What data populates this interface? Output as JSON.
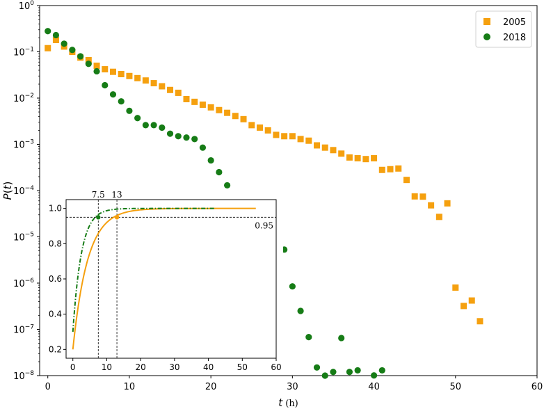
{
  "chart_data": [
    {
      "type": "scatter",
      "yscale": "log",
      "xlim": [
        -1,
        60
      ],
      "ylim": [
        1e-08,
        1
      ],
      "xticks": [
        0,
        10,
        20,
        30,
        40,
        50,
        60
      ],
      "xtick_labels": [
        "0",
        "10",
        "20",
        "30",
        "40",
        "50",
        "60"
      ],
      "ytick_exponents": [
        0,
        -1,
        -2,
        -3,
        -4,
        -5,
        -6,
        -7,
        -8
      ],
      "ytick_base": "10",
      "xlabel_italic": "t",
      "xlabel_unit": "(h)",
      "ylabel": "P(t)",
      "ylabel_parts": {
        "symbol": "P",
        "open": "(",
        "var": "t",
        "close": ")"
      },
      "legend_position": "top-right",
      "series": [
        {
          "name": "2005",
          "color": "#f5a00f",
          "marker": "square",
          "x": [
            0,
            1,
            2,
            3,
            4,
            5,
            6,
            7,
            8,
            9,
            10,
            11,
            12,
            13,
            14,
            15,
            16,
            17,
            18,
            19,
            20,
            21,
            22,
            23,
            24,
            25,
            26,
            27,
            28,
            29,
            30,
            31,
            32,
            33,
            34,
            35,
            36,
            37,
            38,
            39,
            40,
            41,
            42,
            43,
            44,
            45,
            46,
            47,
            48,
            49,
            50,
            51,
            52,
            53
          ],
          "y": [
            0.12,
            0.18,
            0.13,
            0.1,
            0.075,
            0.066,
            0.05,
            0.042,
            0.037,
            0.033,
            0.03,
            0.027,
            0.024,
            0.021,
            0.018,
            0.015,
            0.013,
            0.0095,
            0.0083,
            0.0072,
            0.0063,
            0.0055,
            0.0048,
            0.0041,
            0.0035,
            0.0026,
            0.0023,
            0.002,
            0.0016,
            0.0015,
            0.0015,
            0.0013,
            0.0012,
            0.00095,
            0.00085,
            0.00075,
            0.00063,
            0.00052,
            0.0005,
            0.00048,
            0.0005,
            0.00028,
            0.00029,
            0.0003,
            0.00017,
            7.5e-05,
            7.4e-05,
            4.8e-05,
            2.7e-05,
            5.3e-05,
            8e-07,
            3.2e-07,
            4.2e-07,
            1.5e-07
          ]
        },
        {
          "name": "2018",
          "color": "#167c16",
          "marker": "circle",
          "x": [
            0,
            1,
            2,
            3,
            4,
            5,
            6,
            7,
            8,
            9,
            10,
            11,
            12,
            13,
            14,
            15,
            16,
            17,
            18,
            19,
            20,
            21,
            22,
            23,
            24,
            25,
            26,
            27,
            28,
            29,
            30,
            31,
            32,
            33,
            34,
            35,
            36,
            37,
            38,
            39,
            40,
            41
          ],
          "y": [
            0.28,
            0.23,
            0.15,
            0.11,
            0.08,
            0.055,
            0.038,
            0.019,
            0.012,
            0.0085,
            0.0053,
            0.0037,
            0.0026,
            0.0026,
            0.0023,
            0.0017,
            0.0015,
            0.0014,
            0.0013,
            0.00085,
            0.00045,
            0.00025,
            0.00013,
            8.5e-05,
            4.5e-05,
            2.4e-05,
            1.7e-05,
            1.3e-05,
            6.6e-06,
            5.3e-06,
            8.5e-07,
            2.5e-07,
            6.8e-08,
            1.5e-08,
            1e-08,
            1.2e-08,
            6.5e-08,
            1.2e-08,
            1.3e-08,
            9.5e-09,
            1.01e-08,
            1.3e-08
          ]
        }
      ]
    },
    {
      "type": "line",
      "position": "inset",
      "xlim": [
        -2,
        60
      ],
      "ylim": [
        0.15,
        1.05
      ],
      "xticks": [
        0,
        10,
        20,
        30,
        40,
        50,
        60
      ],
      "xtick_labels": [
        "0",
        "10",
        "20",
        "30",
        "40",
        "50",
        "60"
      ],
      "yticks": [
        0.2,
        0.4,
        0.6,
        0.8,
        1.0
      ],
      "ytick_labels": [
        "0.2",
        "0.4",
        "0.6",
        "0.8",
        "1.0"
      ],
      "reference": {
        "y": 0.95,
        "y_label": "0.95",
        "x_markers": [
          7.5,
          13
        ],
        "x_marker_labels": [
          "7.5",
          "13"
        ]
      },
      "series": [
        {
          "color": "#f5a00f",
          "style": "solid",
          "x_end": 54,
          "tau": 4.34,
          "y0": 0.2
        },
        {
          "color": "#167c16",
          "style": "dashdot",
          "x_end": 42,
          "tau": 2.5,
          "y0": 0.3
        }
      ]
    }
  ]
}
